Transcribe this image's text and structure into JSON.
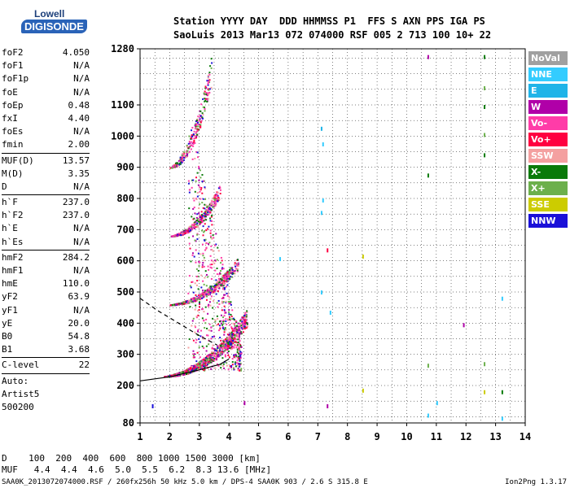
{
  "logo": {
    "line1": "Lowell",
    "line2": "DIGISONDE"
  },
  "header": {
    "line1": "Station YYYY DAY  DDD HHMMSS P1  FFS S AXN PPS IGA PS",
    "line2": "SaoLuis 2013 Mar13 072 074000 RSF 005 2 713 100 10+ 22"
  },
  "params_group1": [
    {
      "label": "foF2",
      "value": "4.050"
    },
    {
      "label": "foF1",
      "value": "N/A"
    },
    {
      "label": "foF1p",
      "value": "N/A"
    },
    {
      "label": "foE",
      "value": "N/A"
    },
    {
      "label": "foEp",
      "value": "0.48"
    },
    {
      "label": "fxI",
      "value": "4.40"
    },
    {
      "label": "foEs",
      "value": "N/A"
    },
    {
      "label": "fmin",
      "value": "2.00"
    }
  ],
  "params_group2": [
    {
      "label": "MUF(D)",
      "value": "13.57"
    },
    {
      "label": "M(D)",
      "value": "3.35"
    },
    {
      "label": "D",
      "value": "N/A"
    }
  ],
  "params_group3": [
    {
      "label": "h`F",
      "value": "237.0"
    },
    {
      "label": "h`F2",
      "value": "237.0"
    },
    {
      "label": "h`E",
      "value": "N/A"
    },
    {
      "label": "h`Es",
      "value": "N/A"
    }
  ],
  "params_group4": [
    {
      "label": "hmF2",
      "value": "284.2"
    },
    {
      "label": "hmF1",
      "value": "N/A"
    },
    {
      "label": "hmE",
      "value": "110.0"
    },
    {
      "label": "yF2",
      "value": "63.9"
    },
    {
      "label": "yF1",
      "value": "N/A"
    },
    {
      "label": "yE",
      "value": "20.0"
    },
    {
      "label": "B0",
      "value": "54.8"
    },
    {
      "label": "B1",
      "value": "3.68"
    }
  ],
  "clevel": {
    "label": "C-level",
    "value": "22"
  },
  "auto_lines": [
    "Auto:",
    "Artist5",
    "500200"
  ],
  "legend": [
    {
      "label": "NoVal",
      "color": "#a0a0a0"
    },
    {
      "label": "NNE",
      "color": "#33ccff"
    },
    {
      "label": "E",
      "color": "#1fb4e8"
    },
    {
      "label": "W",
      "color": "#b000a8"
    },
    {
      "label": "Vo-",
      "color": "#ff3ca8"
    },
    {
      "label": "Vo+",
      "color": "#ff0040"
    },
    {
      "label": "SSW",
      "color": "#f4a0a0"
    },
    {
      "label": "X-",
      "color": "#0a7a0a"
    },
    {
      "label": "X+",
      "color": "#6cb04c"
    },
    {
      "label": "SSE",
      "color": "#cccc00"
    },
    {
      "label": "NNW",
      "color": "#1a10d8"
    }
  ],
  "dmuf": {
    "d_line": "D    100  200  400  600  800 1000 1500 3000 [km]",
    "muf_line": "MUF   4.4  4.4  4.6  5.0  5.5  6.2  8.3 13.6 [MHz]"
  },
  "footer": "SAA0K_2013072074000.RSF / 260fx256h 50 kHz 5.0 km / DPS-4 SAA0K 903 / 2.6 S 315.8 E",
  "footer_right": "Ion2Png 1.3.17",
  "chart_data": {
    "type": "scatter",
    "title": "",
    "xlabel": "",
    "ylabel": "",
    "xlim": [
      1,
      14
    ],
    "ylim": [
      80,
      1280
    ],
    "x_ticks": [
      1,
      2,
      3,
      4,
      5,
      6,
      7,
      8,
      9,
      10,
      11,
      12,
      13,
      14
    ],
    "y_ticks": [
      80,
      200,
      300,
      400,
      500,
      600,
      700,
      800,
      900,
      1000,
      1100,
      1280
    ],
    "grid": true,
    "traces": [
      {
        "name": "1st hop",
        "freq_range": [
          1.8,
          4.6
        ],
        "height_range": [
          230,
          460
        ]
      },
      {
        "name": "2nd hop",
        "freq_range": [
          2.0,
          4.3
        ],
        "height_range": [
          460,
          620
        ]
      },
      {
        "name": "3rd hop",
        "freq_range": [
          2.0,
          3.7
        ],
        "height_range": [
          680,
          860
        ]
      },
      {
        "name": "4th hop",
        "freq_range": [
          2.0,
          3.4
        ],
        "height_range": [
          900,
          1280
        ]
      }
    ],
    "curves": [
      {
        "name": "profile",
        "points": [
          [
            1,
            215
          ],
          [
            2,
            228
          ],
          [
            3,
            250
          ],
          [
            3.7,
            268
          ],
          [
            4.0,
            285
          ]
        ]
      },
      {
        "name": "dashed",
        "points": [
          [
            1,
            480
          ],
          [
            1.6,
            440
          ],
          [
            2.3,
            400
          ],
          [
            3.0,
            360
          ],
          [
            3.6,
            330
          ]
        ]
      }
    ]
  }
}
